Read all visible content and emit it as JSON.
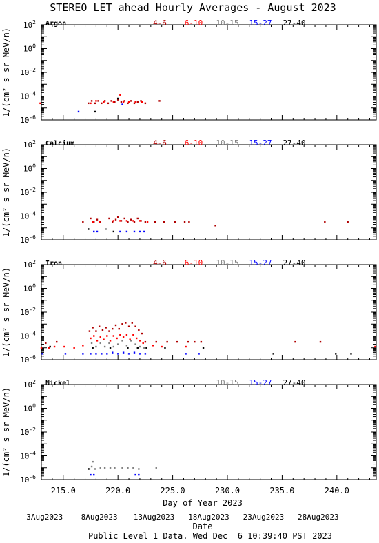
{
  "title": "STEREO LET ahead Hourly Averages - August 2023",
  "footer": {
    "x_label": "Day of Year 2023",
    "date_label": "Date",
    "note": "Public Level 1 Data. Wed Dec  6 10:39:40 PST 2023"
  },
  "colors": {
    "4-6": "#b00000",
    "6-10": "#ff0000",
    "10-15": "#808080",
    "15-27": "#0000ff",
    "27-40": "#000000"
  },
  "chart_data": {
    "type": "scatter",
    "x_range": [
      213,
      243.6
    ],
    "x_ticks": [
      215,
      220,
      225,
      230,
      235,
      240
    ],
    "x_tick_labels": [
      "215.0",
      "220.0",
      "225.0",
      "230.0",
      "235.0",
      "240.0"
    ],
    "date_tick_doy": [
      215,
      220,
      225,
      230,
      235,
      240
    ],
    "date_tick_labels": [
      "3Aug2023",
      "8Aug2023",
      "13Aug2023",
      "18Aug2023",
      "23Aug2023",
      "28Aug2023"
    ],
    "y_scale": "log",
    "y_range_exp": [
      -6,
      2
    ],
    "y_tick_exps": [
      2,
      0,
      -2,
      -4,
      -6
    ],
    "y_label": "1/(cm² s sr MeV/n)",
    "panels": [
      {
        "element": "Argon",
        "legend": [
          "4-6",
          "6-10",
          "10-15",
          "15-27",
          "27-40"
        ],
        "series": [
          {
            "name": "4-6",
            "points": [
              [
                217.3,
                -4.6
              ],
              [
                217.6,
                -4.4
              ],
              [
                217.9,
                -4.6
              ],
              [
                218.2,
                -4.4
              ],
              [
                218.5,
                -4.6
              ],
              [
                218.8,
                -4.4
              ],
              [
                219.1,
                -4.6
              ],
              [
                219.4,
                -4.4
              ],
              [
                219.7,
                -4.5
              ],
              [
                220.0,
                -4.3
              ],
              [
                220.3,
                -4.5
              ],
              [
                220.6,
                -4.4
              ],
              [
                220.9,
                -4.6
              ],
              [
                221.2,
                -4.4
              ],
              [
                221.5,
                -4.6
              ],
              [
                221.8,
                -4.5
              ],
              [
                222.1,
                -4.4
              ],
              [
                222.5,
                -4.6
              ],
              [
                223.8,
                -4.4
              ]
            ]
          },
          {
            "name": "6-10",
            "points": [
              [
                212.9,
                -4.6
              ],
              [
                217.5,
                -4.6
              ],
              [
                218.0,
                -4.4
              ],
              [
                218.7,
                -4.5
              ],
              [
                219.6,
                -4.5
              ],
              [
                220.2,
                -3.9
              ],
              [
                220.5,
                -4.5
              ],
              [
                221.0,
                -4.5
              ],
              [
                221.6,
                -4.5
              ],
              [
                222.2,
                -4.5
              ]
            ]
          },
          {
            "name": "15-27",
            "points": [
              [
                216.4,
                -5.3
              ],
              [
                220.4,
                -4.7
              ]
            ]
          },
          {
            "name": "27-40",
            "points": [
              [
                217.9,
                -5.3
              ],
              [
                220.0,
                -4.2
              ]
            ]
          }
        ]
      },
      {
        "element": "Calcium",
        "legend": [
          "4-6",
          "6-10",
          "10-15",
          "15-27",
          "27-40"
        ],
        "series": [
          {
            "name": "4-6",
            "points": [
              [
                216.8,
                -4.5
              ],
              [
                217.5,
                -4.2
              ],
              [
                217.8,
                -4.5
              ],
              [
                218.1,
                -4.3
              ],
              [
                218.4,
                -4.5
              ],
              [
                219.2,
                -4.2
              ],
              [
                219.5,
                -4.5
              ],
              [
                219.8,
                -4.3
              ],
              [
                220.0,
                -4.1
              ],
              [
                220.3,
                -4.4
              ],
              [
                220.6,
                -4.2
              ],
              [
                220.9,
                -4.5
              ],
              [
                221.2,
                -4.3
              ],
              [
                221.5,
                -4.5
              ],
              [
                221.8,
                -4.2
              ],
              [
                222.1,
                -4.4
              ],
              [
                222.5,
                -4.5
              ],
              [
                223.4,
                -4.5
              ],
              [
                224.2,
                -4.5
              ],
              [
                225.2,
                -4.5
              ],
              [
                226.1,
                -4.5
              ],
              [
                226.5,
                -4.5
              ],
              [
                228.9,
                -4.8
              ],
              [
                238.9,
                -4.5
              ],
              [
                241.0,
                -4.5
              ]
            ]
          },
          {
            "name": "6-10",
            "points": [
              [
                217.7,
                -4.5
              ],
              [
                218.3,
                -4.5
              ],
              [
                219.6,
                -4.4
              ],
              [
                220.2,
                -4.4
              ],
              [
                220.8,
                -4.4
              ],
              [
                221.4,
                -4.4
              ],
              [
                222.0,
                -4.4
              ],
              [
                222.7,
                -4.5
              ]
            ]
          },
          {
            "name": "10-15",
            "points": [
              [
                218.9,
                -5.1
              ]
            ]
          },
          {
            "name": "15-27",
            "points": [
              [
                217.8,
                -5.3
              ],
              [
                218.1,
                -5.3
              ],
              [
                220.2,
                -5.3
              ],
              [
                220.8,
                -5.3
              ],
              [
                221.5,
                -5.3
              ],
              [
                222.0,
                -5.3
              ],
              [
                222.4,
                -5.3
              ]
            ]
          },
          {
            "name": "27-40",
            "points": [
              [
                217.3,
                -5.1
              ],
              [
                219.6,
                -5.3
              ]
            ]
          }
        ]
      },
      {
        "element": "Iron",
        "legend": [
          "4-6",
          "6-10",
          "10-15",
          "15-27",
          "27-40"
        ],
        "series": [
          {
            "name": "4-6",
            "points": [
              [
                217.4,
                -3.6
              ],
              [
                217.7,
                -3.3
              ],
              [
                218.0,
                -3.6
              ],
              [
                218.3,
                -3.2
              ],
              [
                218.6,
                -3.5
              ],
              [
                218.9,
                -3.3
              ],
              [
                219.2,
                -3.6
              ],
              [
                219.5,
                -3.4
              ],
              [
                219.8,
                -3.1
              ],
              [
                220.1,
                -3.4
              ],
              [
                220.4,
                -3.0
              ],
              [
                220.7,
                -2.9
              ],
              [
                221.0,
                -3.2
              ],
              [
                221.3,
                -2.9
              ],
              [
                221.6,
                -3.2
              ],
              [
                221.9,
                -3.5
              ],
              [
                222.2,
                -3.8
              ],
              [
                222.5,
                -4.5
              ],
              [
                223.5,
                -4.5
              ],
              [
                224.5,
                -4.5
              ],
              [
                225.4,
                -4.5
              ],
              [
                226.4,
                -4.5
              ],
              [
                227.0,
                -4.5
              ],
              [
                227.6,
                -4.5
              ],
              [
                214.4,
                -4.5
              ],
              [
                213.4,
                -4.6
              ],
              [
                236.2,
                -4.5
              ],
              [
                238.5,
                -4.5
              ]
            ]
          },
          {
            "name": "6-10",
            "points": [
              [
                213.0,
                -5.0
              ],
              [
                213.7,
                -5.0
              ],
              [
                214.2,
                -4.9
              ],
              [
                215.1,
                -4.9
              ],
              [
                216.0,
                -5.0
              ],
              [
                216.8,
                -4.8
              ],
              [
                217.5,
                -4.2
              ],
              [
                217.8,
                -4.0
              ],
              [
                218.1,
                -4.4
              ],
              [
                218.4,
                -4.1
              ],
              [
                218.7,
                -4.3
              ],
              [
                219.0,
                -4.0
              ],
              [
                219.3,
                -4.4
              ],
              [
                219.6,
                -4.0
              ],
              [
                219.9,
                -4.2
              ],
              [
                220.2,
                -3.9
              ],
              [
                220.5,
                -4.1
              ],
              [
                220.8,
                -3.9
              ],
              [
                221.1,
                -4.3
              ],
              [
                221.4,
                -3.9
              ],
              [
                221.7,
                -4.2
              ],
              [
                222.0,
                -4.4
              ],
              [
                222.3,
                -4.6
              ],
              [
                223.2,
                -4.8
              ],
              [
                224.0,
                -4.9
              ],
              [
                226.2,
                -4.9
              ],
              [
                243.5,
                -4.9
              ]
            ]
          },
          {
            "name": "10-15",
            "points": [
              [
                217.6,
                -4.6
              ],
              [
                218.0,
                -4.9
              ],
              [
                218.4,
                -4.6
              ],
              [
                218.8,
                -4.9
              ],
              [
                219.2,
                -4.6
              ],
              [
                219.6,
                -4.9
              ],
              [
                220.0,
                -4.7
              ],
              [
                220.4,
                -4.4
              ],
              [
                220.8,
                -4.8
              ],
              [
                221.2,
                -4.4
              ],
              [
                221.6,
                -4.7
              ],
              [
                222.0,
                -4.9
              ],
              [
                222.4,
                -5.0
              ]
            ]
          },
          {
            "name": "15-27",
            "points": [
              [
                213.1,
                -5.5
              ],
              [
                215.2,
                -5.5
              ],
              [
                216.8,
                -5.5
              ],
              [
                217.5,
                -5.5
              ],
              [
                218.0,
                -5.5
              ],
              [
                218.5,
                -5.5
              ],
              [
                219.0,
                -5.5
              ],
              [
                219.5,
                -5.4
              ],
              [
                220.0,
                -5.5
              ],
              [
                220.5,
                -5.4
              ],
              [
                221.0,
                -5.5
              ],
              [
                221.5,
                -5.4
              ],
              [
                222.0,
                -5.5
              ],
              [
                222.5,
                -5.5
              ],
              [
                226.2,
                -5.5
              ],
              [
                227.4,
                -5.5
              ]
            ]
          },
          {
            "name": "27-40",
            "points": [
              [
                213.8,
                -4.9
              ],
              [
                217.7,
                -5.0
              ],
              [
                219.3,
                -5.0
              ],
              [
                220.9,
                -5.0
              ],
              [
                221.8,
                -5.0
              ],
              [
                222.6,
                -5.0
              ],
              [
                224.3,
                -5.0
              ],
              [
                227.8,
                -5.0
              ],
              [
                234.2,
                -5.5
              ],
              [
                239.9,
                -5.5
              ],
              [
                241.3,
                -5.5
              ]
            ]
          }
        ]
      },
      {
        "element": "Nickel",
        "legend": [
          "10-15",
          "15-27",
          "27-40"
        ],
        "series": [
          {
            "name": "10-15",
            "points": [
              [
                217.4,
                -5.1
              ],
              [
                217.6,
                -4.9
              ],
              [
                217.7,
                -4.5
              ],
              [
                217.9,
                -5.1
              ],
              [
                218.4,
                -5.0
              ],
              [
                218.8,
                -5.0
              ],
              [
                219.3,
                -5.0
              ],
              [
                219.7,
                -5.0
              ],
              [
                220.4,
                -5.0
              ],
              [
                220.9,
                -5.0
              ],
              [
                221.4,
                -5.0
              ],
              [
                221.9,
                -5.1
              ],
              [
                223.5,
                -5.0
              ]
            ]
          },
          {
            "name": "15-27",
            "points": [
              [
                217.5,
                -5.6
              ],
              [
                217.8,
                -5.6
              ],
              [
                221.6,
                -5.6
              ],
              [
                221.9,
                -5.6
              ]
            ]
          },
          {
            "name": "27-40",
            "points": [
              [
                217.3,
                -5.1
              ]
            ]
          }
        ]
      }
    ]
  }
}
